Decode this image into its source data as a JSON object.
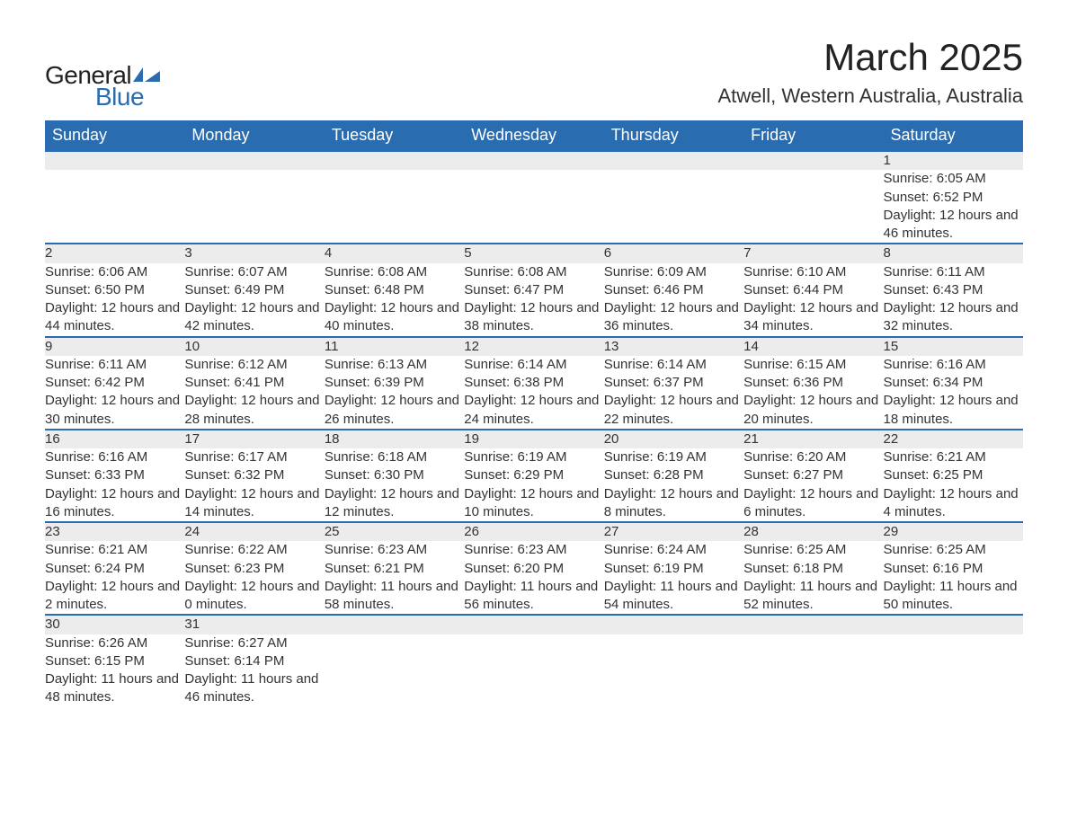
{
  "logo": {
    "text1": "General",
    "text2": "Blue",
    "icon_color": "#2a6cb0"
  },
  "title": "March 2025",
  "location": "Atwell, Western Australia, Australia",
  "colors": {
    "header_bg": "#2a6cb0",
    "header_text": "#ffffff",
    "row_separator": "#2a6cb0",
    "daynum_bg": "#ececec",
    "text": "#333333",
    "page_bg": "#ffffff"
  },
  "columns": [
    "Sunday",
    "Monday",
    "Tuesday",
    "Wednesday",
    "Thursday",
    "Friday",
    "Saturday"
  ],
  "weeks": [
    [
      null,
      null,
      null,
      null,
      null,
      null,
      {
        "n": "1",
        "sunrise": "6:05 AM",
        "sunset": "6:52 PM",
        "daylight": "12 hours and 46 minutes."
      }
    ],
    [
      {
        "n": "2",
        "sunrise": "6:06 AM",
        "sunset": "6:50 PM",
        "daylight": "12 hours and 44 minutes."
      },
      {
        "n": "3",
        "sunrise": "6:07 AM",
        "sunset": "6:49 PM",
        "daylight": "12 hours and 42 minutes."
      },
      {
        "n": "4",
        "sunrise": "6:08 AM",
        "sunset": "6:48 PM",
        "daylight": "12 hours and 40 minutes."
      },
      {
        "n": "5",
        "sunrise": "6:08 AM",
        "sunset": "6:47 PM",
        "daylight": "12 hours and 38 minutes."
      },
      {
        "n": "6",
        "sunrise": "6:09 AM",
        "sunset": "6:46 PM",
        "daylight": "12 hours and 36 minutes."
      },
      {
        "n": "7",
        "sunrise": "6:10 AM",
        "sunset": "6:44 PM",
        "daylight": "12 hours and 34 minutes."
      },
      {
        "n": "8",
        "sunrise": "6:11 AM",
        "sunset": "6:43 PM",
        "daylight": "12 hours and 32 minutes."
      }
    ],
    [
      {
        "n": "9",
        "sunrise": "6:11 AM",
        "sunset": "6:42 PM",
        "daylight": "12 hours and 30 minutes."
      },
      {
        "n": "10",
        "sunrise": "6:12 AM",
        "sunset": "6:41 PM",
        "daylight": "12 hours and 28 minutes."
      },
      {
        "n": "11",
        "sunrise": "6:13 AM",
        "sunset": "6:39 PM",
        "daylight": "12 hours and 26 minutes."
      },
      {
        "n": "12",
        "sunrise": "6:14 AM",
        "sunset": "6:38 PM",
        "daylight": "12 hours and 24 minutes."
      },
      {
        "n": "13",
        "sunrise": "6:14 AM",
        "sunset": "6:37 PM",
        "daylight": "12 hours and 22 minutes."
      },
      {
        "n": "14",
        "sunrise": "6:15 AM",
        "sunset": "6:36 PM",
        "daylight": "12 hours and 20 minutes."
      },
      {
        "n": "15",
        "sunrise": "6:16 AM",
        "sunset": "6:34 PM",
        "daylight": "12 hours and 18 minutes."
      }
    ],
    [
      {
        "n": "16",
        "sunrise": "6:16 AM",
        "sunset": "6:33 PM",
        "daylight": "12 hours and 16 minutes."
      },
      {
        "n": "17",
        "sunrise": "6:17 AM",
        "sunset": "6:32 PM",
        "daylight": "12 hours and 14 minutes."
      },
      {
        "n": "18",
        "sunrise": "6:18 AM",
        "sunset": "6:30 PM",
        "daylight": "12 hours and 12 minutes."
      },
      {
        "n": "19",
        "sunrise": "6:19 AM",
        "sunset": "6:29 PM",
        "daylight": "12 hours and 10 minutes."
      },
      {
        "n": "20",
        "sunrise": "6:19 AM",
        "sunset": "6:28 PM",
        "daylight": "12 hours and 8 minutes."
      },
      {
        "n": "21",
        "sunrise": "6:20 AM",
        "sunset": "6:27 PM",
        "daylight": "12 hours and 6 minutes."
      },
      {
        "n": "22",
        "sunrise": "6:21 AM",
        "sunset": "6:25 PM",
        "daylight": "12 hours and 4 minutes."
      }
    ],
    [
      {
        "n": "23",
        "sunrise": "6:21 AM",
        "sunset": "6:24 PM",
        "daylight": "12 hours and 2 minutes."
      },
      {
        "n": "24",
        "sunrise": "6:22 AM",
        "sunset": "6:23 PM",
        "daylight": "12 hours and 0 minutes."
      },
      {
        "n": "25",
        "sunrise": "6:23 AM",
        "sunset": "6:21 PM",
        "daylight": "11 hours and 58 minutes."
      },
      {
        "n": "26",
        "sunrise": "6:23 AM",
        "sunset": "6:20 PM",
        "daylight": "11 hours and 56 minutes."
      },
      {
        "n": "27",
        "sunrise": "6:24 AM",
        "sunset": "6:19 PM",
        "daylight": "11 hours and 54 minutes."
      },
      {
        "n": "28",
        "sunrise": "6:25 AM",
        "sunset": "6:18 PM",
        "daylight": "11 hours and 52 minutes."
      },
      {
        "n": "29",
        "sunrise": "6:25 AM",
        "sunset": "6:16 PM",
        "daylight": "11 hours and 50 minutes."
      }
    ],
    [
      {
        "n": "30",
        "sunrise": "6:26 AM",
        "sunset": "6:15 PM",
        "daylight": "11 hours and 48 minutes."
      },
      {
        "n": "31",
        "sunrise": "6:27 AM",
        "sunset": "6:14 PM",
        "daylight": "11 hours and 46 minutes."
      },
      null,
      null,
      null,
      null,
      null
    ]
  ],
  "labels": {
    "sunrise": "Sunrise: ",
    "sunset": "Sunset: ",
    "daylight": "Daylight: "
  }
}
